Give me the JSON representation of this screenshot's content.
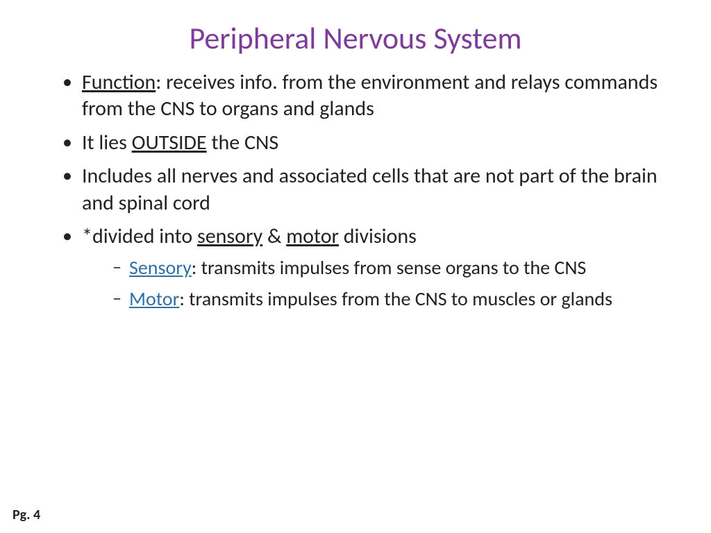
{
  "colors": {
    "title": "#7d3c98",
    "body": "#222222",
    "accent": "#2f6fa7",
    "background": "#ffffff"
  },
  "title": "Peripheral Nervous System",
  "bullets": {
    "b1": {
      "label": "Function",
      "rest": ": receives info. from the environment and relays commands from the CNS to organs and glands"
    },
    "b2": {
      "pre": "It lies ",
      "u": "OUTSIDE",
      "post": " the CNS"
    },
    "b3": "Includes all nerves and associated cells that are not part of the brain and spinal cord",
    "b4": {
      "pre": "*divided into ",
      "u1": "sensory",
      "mid": " & ",
      "u2": "motor",
      "post": " divisions"
    },
    "sub1": {
      "label": "Sensory",
      "rest": ": transmits impulses from sense organs to the CNS"
    },
    "sub2": {
      "label": "Motor",
      "rest": ": transmits impulses from the CNS to muscles or glands"
    }
  },
  "page": "Pg. 4",
  "typography": {
    "title_fontsize": 44,
    "body_fontsize": 30,
    "sub_fontsize": 28,
    "page_fontsize": 20
  }
}
